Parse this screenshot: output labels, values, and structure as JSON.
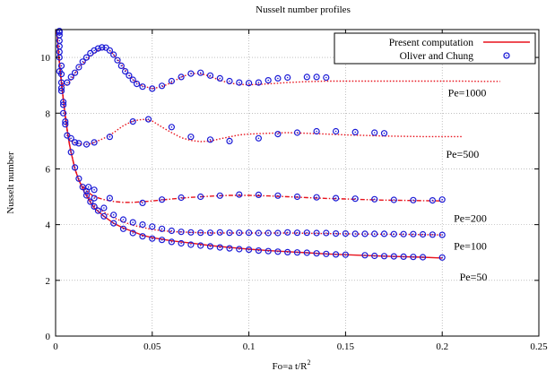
{
  "chart_data": {
    "type": "line",
    "title": "Nusselt number profiles",
    "xlabel": "Fo=a t/R",
    "xlabel_superscript": "2",
    "ylabel": "Nusselt number",
    "xlim": [
      0,
      0.25
    ],
    "ylim": [
      0,
      11
    ],
    "x_ticks": [
      "0",
      "0.05",
      "0.1",
      "0.15",
      "0.2",
      "0.25"
    ],
    "y_ticks": [
      "0",
      "2",
      "4",
      "6",
      "8",
      "10"
    ],
    "x_tick_values": [
      0,
      0.05,
      0.1,
      0.15,
      0.2,
      0.25
    ],
    "y_tick_values": [
      0,
      2,
      4,
      6,
      8,
      10
    ],
    "grid": true,
    "legend_position": "top-right",
    "legend": {
      "line": "Present computation",
      "markers": "Oliver and Chung"
    },
    "colors": {
      "computation": "#e8111b",
      "experiment": "#1a1ad6",
      "grid": "#9a9a9a"
    },
    "annotations": [
      {
        "text": "Pe=1000",
        "x": 0.203,
        "y": 8.6
      },
      {
        "text": "Pe=500",
        "x": 0.202,
        "y": 6.4
      },
      {
        "text": "Pe=200",
        "x": 0.206,
        "y": 4.1
      },
      {
        "text": "Pe=100",
        "x": 0.206,
        "y": 3.1
      },
      {
        "text": "Pe=50",
        "x": 0.209,
        "y": 2.0
      }
    ],
    "series": [
      {
        "name": "Pe=50",
        "style": "solid",
        "x": [
          0.0005,
          0.001,
          0.0015,
          0.002,
          0.003,
          0.004,
          0.005,
          0.006,
          0.007,
          0.008,
          0.01,
          0.012,
          0.015,
          0.018,
          0.02,
          0.025,
          0.03,
          0.035,
          0.04,
          0.045,
          0.05,
          0.06,
          0.07,
          0.08,
          0.09,
          0.1,
          0.11,
          0.12,
          0.13,
          0.14,
          0.15,
          0.16,
          0.17,
          0.18,
          0.19,
          0.2
        ],
        "y": [
          11.0,
          10.6,
          10.2,
          9.8,
          9.1,
          8.5,
          7.9,
          7.4,
          6.95,
          6.6,
          6.0,
          5.6,
          5.15,
          4.8,
          4.6,
          4.3,
          4.05,
          3.88,
          3.75,
          3.62,
          3.53,
          3.42,
          3.34,
          3.25,
          3.18,
          3.12,
          3.07,
          3.03,
          2.99,
          2.95,
          2.92,
          2.89,
          2.87,
          2.85,
          2.83,
          2.8
        ]
      },
      {
        "name": "Pe=100",
        "style": "dotted",
        "x": [
          0.0005,
          0.001,
          0.0015,
          0.002,
          0.003,
          0.004,
          0.005,
          0.006,
          0.007,
          0.008,
          0.01,
          0.012,
          0.015,
          0.018,
          0.02,
          0.025,
          0.03,
          0.035,
          0.04,
          0.045,
          0.05,
          0.06,
          0.07,
          0.08,
          0.09,
          0.1,
          0.12,
          0.14,
          0.16,
          0.18,
          0.2
        ],
        "y": [
          11.0,
          10.6,
          10.2,
          9.8,
          9.1,
          8.5,
          7.9,
          7.4,
          6.95,
          6.6,
          6.0,
          5.6,
          5.2,
          4.9,
          4.7,
          4.45,
          4.25,
          4.1,
          3.98,
          3.9,
          3.82,
          3.75,
          3.72,
          3.7,
          3.7,
          3.7,
          3.7,
          3.68,
          3.66,
          3.65,
          3.63
        ]
      },
      {
        "name": "Pe=200",
        "style": "dashdot",
        "x": [
          0.0005,
          0.001,
          0.0015,
          0.002,
          0.003,
          0.004,
          0.005,
          0.006,
          0.007,
          0.008,
          0.01,
          0.012,
          0.015,
          0.018,
          0.02,
          0.025,
          0.03,
          0.035,
          0.04,
          0.045,
          0.05,
          0.06,
          0.07,
          0.08,
          0.09,
          0.1,
          0.11,
          0.12,
          0.13,
          0.14,
          0.15,
          0.16,
          0.17,
          0.18,
          0.19,
          0.2
        ],
        "y": [
          11.0,
          10.6,
          10.2,
          9.8,
          9.1,
          8.5,
          7.9,
          7.4,
          6.95,
          6.6,
          6.0,
          5.6,
          5.3,
          5.1,
          5.0,
          4.9,
          4.83,
          4.8,
          4.8,
          4.82,
          4.85,
          4.92,
          4.98,
          5.02,
          5.05,
          5.05,
          5.03,
          5.0,
          4.97,
          4.94,
          4.92,
          4.9,
          4.88,
          4.87,
          4.86,
          4.85
        ]
      },
      {
        "name": "Pe=500",
        "style": "dotted",
        "x": [
          0.0005,
          0.001,
          0.0015,
          0.002,
          0.003,
          0.004,
          0.005,
          0.006,
          0.007,
          0.008,
          0.01,
          0.012,
          0.015,
          0.018,
          0.02,
          0.025,
          0.03,
          0.035,
          0.04,
          0.045,
          0.05,
          0.055,
          0.06,
          0.065,
          0.07,
          0.075,
          0.08,
          0.085,
          0.09,
          0.095,
          0.1,
          0.11,
          0.12,
          0.13,
          0.14,
          0.15,
          0.16,
          0.17,
          0.18,
          0.19,
          0.2,
          0.21
        ],
        "y": [
          11.0,
          10.6,
          10.2,
          9.8,
          9.1,
          8.5,
          7.9,
          7.4,
          7.1,
          7.0,
          6.93,
          6.9,
          6.88,
          6.9,
          6.95,
          7.1,
          7.3,
          7.55,
          7.72,
          7.78,
          7.72,
          7.5,
          7.3,
          7.12,
          7.02,
          6.98,
          7.0,
          7.08,
          7.15,
          7.22,
          7.25,
          7.28,
          7.3,
          7.28,
          7.25,
          7.22,
          7.2,
          7.18,
          7.17,
          7.16,
          7.16,
          7.16
        ]
      },
      {
        "name": "Pe=1000",
        "style": "dotted",
        "x": [
          0.0005,
          0.001,
          0.0015,
          0.002,
          0.003,
          0.004,
          0.005,
          0.006,
          0.007,
          0.008,
          0.01,
          0.012,
          0.015,
          0.018,
          0.02,
          0.022,
          0.025,
          0.028,
          0.03,
          0.033,
          0.036,
          0.04,
          0.045,
          0.05,
          0.055,
          0.06,
          0.065,
          0.07,
          0.075,
          0.08,
          0.085,
          0.09,
          0.095,
          0.1,
          0.11,
          0.12,
          0.13,
          0.14,
          0.15,
          0.16,
          0.17,
          0.18,
          0.19,
          0.2,
          0.21,
          0.22,
          0.23
        ],
        "y": [
          11.0,
          10.6,
          10.2,
          9.8,
          9.2,
          9.0,
          8.98,
          9.02,
          9.1,
          9.2,
          9.42,
          9.65,
          9.85,
          10.05,
          10.15,
          10.25,
          10.3,
          10.25,
          10.1,
          9.85,
          9.55,
          9.2,
          8.98,
          8.88,
          8.95,
          9.1,
          9.3,
          9.42,
          9.42,
          9.32,
          9.18,
          9.08,
          9.03,
          9.02,
          9.05,
          9.1,
          9.13,
          9.15,
          9.15,
          9.15,
          9.15,
          9.15,
          9.15,
          9.15,
          9.15,
          9.14,
          9.14
        ]
      }
    ],
    "markers": [
      {
        "name": "Pe=50",
        "x": [
          0.002,
          0.003,
          0.004,
          0.005,
          0.006,
          0.008,
          0.01,
          0.012,
          0.014,
          0.016,
          0.018,
          0.02,
          0.022,
          0.025,
          0.03,
          0.035,
          0.04,
          0.045,
          0.05,
          0.055,
          0.06,
          0.065,
          0.07,
          0.075,
          0.08,
          0.085,
          0.09,
          0.095,
          0.1,
          0.105,
          0.11,
          0.115,
          0.12,
          0.125,
          0.13,
          0.135,
          0.14,
          0.145,
          0.15,
          0.16,
          0.165,
          0.17,
          0.175,
          0.18,
          0.185,
          0.19,
          0.2
        ],
        "y": [
          9.5,
          8.9,
          8.3,
          7.7,
          7.2,
          6.6,
          6.05,
          5.65,
          5.35,
          5.05,
          4.82,
          4.65,
          4.5,
          4.3,
          4.05,
          3.85,
          3.7,
          3.58,
          3.5,
          3.45,
          3.38,
          3.33,
          3.28,
          3.25,
          3.22,
          3.18,
          3.15,
          3.12,
          3.1,
          3.07,
          3.05,
          3.03,
          3.01,
          3.0,
          2.99,
          2.97,
          2.95,
          2.93,
          2.92,
          2.9,
          2.88,
          2.87,
          2.86,
          2.85,
          2.84,
          2.83,
          2.82
        ]
      },
      {
        "name": "Pe=100",
        "x": [
          0.016,
          0.02,
          0.025,
          0.03,
          0.035,
          0.04,
          0.045,
          0.05,
          0.055,
          0.06,
          0.065,
          0.07,
          0.075,
          0.08,
          0.085,
          0.09,
          0.095,
          0.1,
          0.105,
          0.11,
          0.115,
          0.12,
          0.125,
          0.13,
          0.135,
          0.14,
          0.145,
          0.15,
          0.155,
          0.16,
          0.165,
          0.17,
          0.175,
          0.18,
          0.185,
          0.19,
          0.195,
          0.2
        ],
        "y": [
          5.2,
          4.95,
          4.6,
          4.35,
          4.18,
          4.08,
          4.0,
          3.93,
          3.85,
          3.78,
          3.74,
          3.72,
          3.71,
          3.71,
          3.72,
          3.71,
          3.71,
          3.71,
          3.7,
          3.7,
          3.7,
          3.72,
          3.71,
          3.71,
          3.7,
          3.7,
          3.68,
          3.68,
          3.67,
          3.67,
          3.67,
          3.67,
          3.66,
          3.66,
          3.66,
          3.65,
          3.64,
          3.63
        ]
      },
      {
        "name": "Pe=200",
        "x": [
          0.017,
          0.02,
          0.028,
          0.045,
          0.055,
          0.065,
          0.075,
          0.085,
          0.095,
          0.105,
          0.115,
          0.125,
          0.135,
          0.145,
          0.155,
          0.165,
          0.175,
          0.185,
          0.195,
          0.2
        ],
        "y": [
          5.35,
          5.25,
          4.95,
          4.78,
          4.9,
          4.97,
          5.0,
          5.04,
          5.08,
          5.07,
          5.04,
          5.0,
          4.98,
          4.95,
          4.93,
          4.91,
          4.89,
          4.88,
          4.87,
          4.9
        ]
      },
      {
        "name": "Pe=500",
        "x": [
          0.008,
          0.01,
          0.012,
          0.016,
          0.02,
          0.028,
          0.04,
          0.048,
          0.06,
          0.07,
          0.08,
          0.09,
          0.105,
          0.115,
          0.125,
          0.135,
          0.145,
          0.155,
          0.165,
          0.17
        ],
        "y": [
          7.1,
          6.95,
          6.92,
          6.88,
          6.95,
          7.15,
          7.7,
          7.78,
          7.5,
          7.15,
          7.05,
          7.0,
          7.1,
          7.25,
          7.3,
          7.35,
          7.35,
          7.32,
          7.3,
          7.28
        ]
      },
      {
        "name": "Pe=1000",
        "x": [
          0.006,
          0.008,
          0.01,
          0.012,
          0.014,
          0.016,
          0.018,
          0.02,
          0.022,
          0.024,
          0.026,
          0.028,
          0.03,
          0.032,
          0.034,
          0.036,
          0.038,
          0.04,
          0.042,
          0.045,
          0.05,
          0.055,
          0.06,
          0.065,
          0.07,
          0.075,
          0.08,
          0.085,
          0.09,
          0.095,
          0.1,
          0.105,
          0.11,
          0.115,
          0.12,
          0.13,
          0.135,
          0.14
        ],
        "y": [
          9.1,
          9.3,
          9.45,
          9.65,
          9.85,
          10.0,
          10.15,
          10.25,
          10.32,
          10.36,
          10.35,
          10.25,
          10.1,
          9.9,
          9.7,
          9.5,
          9.35,
          9.2,
          9.05,
          8.95,
          8.88,
          8.98,
          9.15,
          9.3,
          9.42,
          9.45,
          9.35,
          9.25,
          9.15,
          9.1,
          9.08,
          9.1,
          9.18,
          9.25,
          9.28,
          9.3,
          9.3,
          9.28
        ]
      },
      {
        "name": "near-origin",
        "x": [
          0.002,
          0.002,
          0.002,
          0.002,
          0.002,
          0.002,
          0.002,
          0.003,
          0.003,
          0.003,
          0.003,
          0.004,
          0.004,
          0.005
        ],
        "y": [
          10.95,
          10.9,
          10.8,
          10.6,
          10.4,
          10.2,
          10.0,
          9.7,
          9.4,
          9.1,
          8.8,
          8.4,
          8.0,
          7.6
        ]
      }
    ]
  }
}
